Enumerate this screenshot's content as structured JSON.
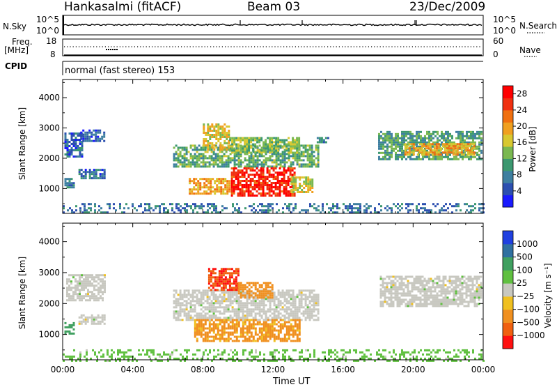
{
  "header": {
    "station": "Hankasalmi (fitACF)",
    "beam": "Beam 03",
    "date": "23/Dec/2009"
  },
  "strip_nsky": {
    "left_label": "N.Sky",
    "left_ticks": [
      "10^5",
      "10^0"
    ],
    "right_label": "N.Search",
    "right_ticks": [
      "10^5",
      "10^0"
    ]
  },
  "strip_freq": {
    "left_label_1": "Freq.",
    "left_label_2": "[MHz]",
    "left_ticks": [
      "18",
      "8"
    ],
    "right_label": "Nave",
    "right_ticks": [
      "60",
      "0"
    ]
  },
  "strip_cpid": {
    "label": "CPID",
    "value": "normal (fast stereo) 153"
  },
  "colors": {
    "background": "#ffffff",
    "frame": "#000000",
    "ground_scatter": "#c8c8c0"
  },
  "chart_data": [
    {
      "type": "heatmap",
      "panel": "power",
      "ylabel": "Slant Range [km]",
      "xlabel": "",
      "x_ticks": [
        "00:00",
        "04:00",
        "08:00",
        "12:00",
        "16:00",
        "20:00",
        "00:00"
      ],
      "x_range_hours": [
        0,
        24
      ],
      "y_ticks": [
        1000,
        2000,
        3000,
        4000
      ],
      "ylim": [
        180,
        4600
      ],
      "colorbar": {
        "label": "Power [dB]",
        "ticks": [
          "4",
          "8",
          "12",
          "16",
          "20",
          "24",
          "28"
        ],
        "range": [
          0,
          30
        ],
        "colors": [
          "#1a1aff",
          "#2c4fb0",
          "#3e7fa0",
          "#3c9870",
          "#7ab850",
          "#d8c830",
          "#f0a020",
          "#f07010",
          "#f03010",
          "#ff0000"
        ]
      },
      "regions": [
        {
          "t": [
            0.1,
            1.1
          ],
          "r": [
            2050,
            2850
          ],
          "v": 6
        },
        {
          "t": [
            1.0,
            2.4
          ],
          "r": [
            2600,
            2950
          ],
          "v": 5
        },
        {
          "t": [
            0.9,
            2.4
          ],
          "r": [
            1350,
            1650
          ],
          "v": 6
        },
        {
          "t": [
            0.1,
            0.6
          ],
          "r": [
            1050,
            1350
          ],
          "v": 8
        },
        {
          "t": [
            6.3,
            14.6
          ],
          "r": [
            1700,
            2450
          ],
          "v": 12
        },
        {
          "t": [
            8.0,
            9.5
          ],
          "r": [
            2300,
            3150
          ],
          "v": 17
        },
        {
          "t": [
            9.5,
            13.5
          ],
          "r": [
            2200,
            2700
          ],
          "v": 13
        },
        {
          "t": [
            9.6,
            13.2
          ],
          "r": [
            800,
            1700
          ],
          "v": 27
        },
        {
          "t": [
            7.2,
            9.5
          ],
          "r": [
            850,
            1350
          ],
          "v": 20
        },
        {
          "t": [
            13.0,
            14.2
          ],
          "r": [
            900,
            1400
          ],
          "v": 16
        },
        {
          "t": [
            18.0,
            23.9
          ],
          "r": [
            1950,
            2900
          ],
          "v": 11
        },
        {
          "t": [
            19.5,
            23.5
          ],
          "r": [
            2100,
            2500
          ],
          "v": 19
        },
        {
          "t": [
            14.5,
            15.2
          ],
          "r": [
            2550,
            2700
          ],
          "v": 8
        },
        {
          "t": [
            0.0,
            24.0
          ],
          "r": [
            180,
            520
          ],
          "v": 7
        }
      ]
    },
    {
      "type": "heatmap",
      "panel": "velocity",
      "ylabel": "Slant Range [km]",
      "xlabel": "Time UT",
      "x_ticks": [
        "00:00",
        "04:00",
        "08:00",
        "12:00",
        "16:00",
        "20:00",
        "00:00"
      ],
      "x_range_hours": [
        0,
        24
      ],
      "y_ticks": [
        1000,
        2000,
        3000,
        4000
      ],
      "ylim": [
        180,
        4600
      ],
      "colorbar": {
        "label": "Velocity [m s⁻¹]",
        "ticks": [
          "1000",
          "500",
          "100",
          "25",
          "−25",
          "−100",
          "−500",
          "−1000"
        ],
        "colors": [
          "#2040e0",
          "#3070a0",
          "#40a060",
          "#60c040",
          "#c8c8c0",
          "#f0c020",
          "#f09020",
          "#f06010",
          "#ff1010"
        ]
      },
      "regions": [
        {
          "t": [
            0.2,
            2.4
          ],
          "r": [
            2100,
            2950
          ],
          "v": 0
        },
        {
          "t": [
            0.9,
            2.4
          ],
          "r": [
            1350,
            1650
          ],
          "v": 0
        },
        {
          "t": [
            0.1,
            0.6
          ],
          "r": [
            1050,
            1400
          ],
          "v": 150
        },
        {
          "t": [
            6.3,
            14.6
          ],
          "r": [
            1500,
            2450
          ],
          "v": 0
        },
        {
          "t": [
            8.3,
            10.0
          ],
          "r": [
            2450,
            3150
          ],
          "v": -700
        },
        {
          "t": [
            10.0,
            12.0
          ],
          "r": [
            2200,
            2700
          ],
          "v": -200
        },
        {
          "t": [
            7.5,
            13.5
          ],
          "r": [
            800,
            1500
          ],
          "v": -80
        },
        {
          "t": [
            18.1,
            23.9
          ],
          "r": [
            1900,
            2900
          ],
          "v": 0
        },
        {
          "t": [
            0.0,
            24.0
          ],
          "r": [
            180,
            520
          ],
          "v": 40
        }
      ]
    }
  ]
}
